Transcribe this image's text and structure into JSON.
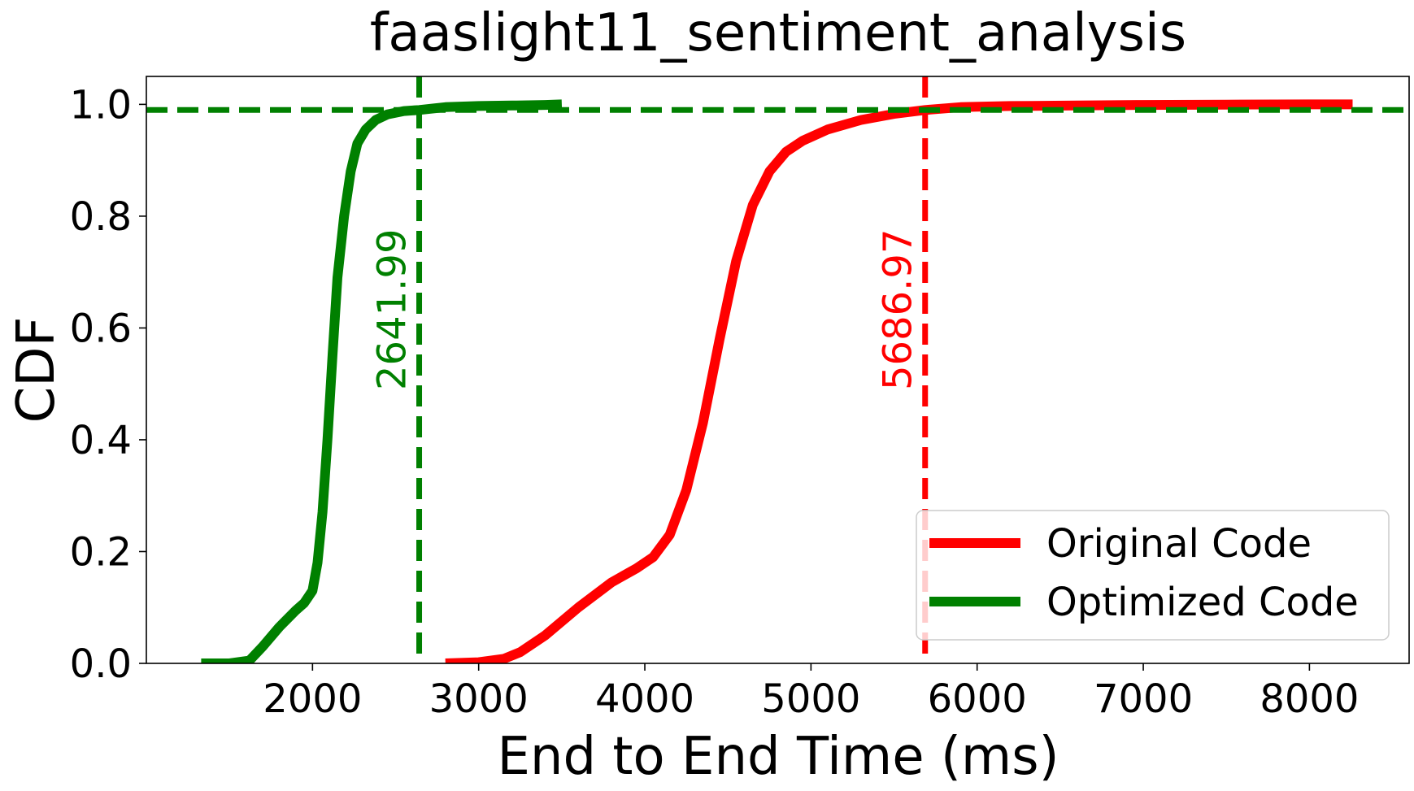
{
  "chart_data": {
    "type": "line",
    "title": "faaslight11_sentiment_analysis",
    "xlabel": "End to End Time (ms)",
    "ylabel": "CDF",
    "xlim": [
      1000,
      8600
    ],
    "ylim": [
      0.0,
      1.05
    ],
    "xticks": [
      2000,
      3000,
      4000,
      5000,
      6000,
      7000,
      8000
    ],
    "xtick_labels": [
      "2000",
      "3000",
      "4000",
      "5000",
      "6000",
      "7000",
      "8000"
    ],
    "yticks": [
      0.0,
      0.2,
      0.4,
      0.6,
      0.8,
      1.0
    ],
    "ytick_labels": [
      "0.0",
      "0.2",
      "0.4",
      "0.6",
      "0.8",
      "1.0"
    ],
    "grid": false,
    "legend_position": "lower-right",
    "series": [
      {
        "name": "Original Code",
        "color": "#ff0000",
        "x": [
          2800,
          3000,
          3150,
          3250,
          3400,
          3600,
          3800,
          3950,
          4050,
          4150,
          4250,
          4350,
          4450,
          4550,
          4650,
          4750,
          4850,
          4950,
          5100,
          5300,
          5500,
          5687,
          5900,
          6200,
          6600,
          7000,
          7500,
          8000,
          8260
        ],
        "y": [
          0.0,
          0.002,
          0.008,
          0.02,
          0.05,
          0.1,
          0.145,
          0.17,
          0.19,
          0.23,
          0.31,
          0.43,
          0.58,
          0.72,
          0.82,
          0.88,
          0.915,
          0.935,
          0.955,
          0.972,
          0.983,
          0.99,
          0.995,
          0.997,
          0.998,
          0.999,
          0.9995,
          1.0,
          1.0
        ]
      },
      {
        "name": "Optimized Code",
        "color": "#008000",
        "x": [
          1330,
          1500,
          1620,
          1700,
          1800,
          1900,
          1950,
          2000,
          2030,
          2060,
          2090,
          2120,
          2150,
          2190,
          2230,
          2270,
          2320,
          2380,
          2450,
          2550,
          2642,
          2800,
          3000,
          3200,
          3400,
          3500
        ],
        "y": [
          0.0,
          0.0,
          0.005,
          0.03,
          0.065,
          0.095,
          0.108,
          0.13,
          0.18,
          0.27,
          0.4,
          0.55,
          0.69,
          0.8,
          0.88,
          0.93,
          0.955,
          0.972,
          0.982,
          0.988,
          0.99,
          0.995,
          0.997,
          0.998,
          0.999,
          1.0
        ]
      }
    ],
    "reference_lines": [
      {
        "orientation": "vertical",
        "value": 5686.97,
        "label": "5686.97",
        "color": "#ff0000",
        "style": "dashed"
      },
      {
        "orientation": "vertical",
        "value": 2641.99,
        "label": "2641.99",
        "color": "#008000",
        "style": "dashed"
      },
      {
        "orientation": "horizontal",
        "value": 0.99,
        "color": "#008000",
        "style": "dashed"
      }
    ]
  }
}
